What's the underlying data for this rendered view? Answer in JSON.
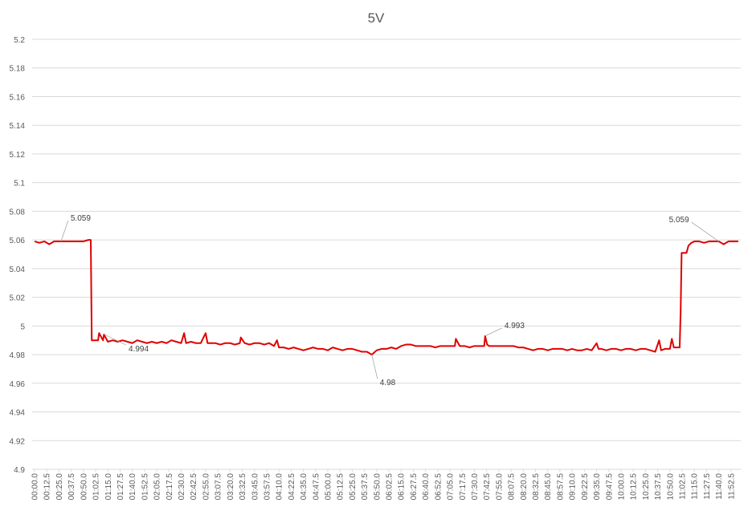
{
  "chart_data": {
    "type": "line",
    "title": "5V",
    "ylim": [
      4.9,
      5.2
    ],
    "yticks": [
      4.9,
      4.92,
      4.94,
      4.96,
      4.98,
      5,
      5.02,
      5.04,
      5.06,
      5.08,
      5.1,
      5.12,
      5.14,
      5.16,
      5.18,
      5.2
    ],
    "grid": true,
    "xlim": [
      -2.5,
      722.5
    ],
    "xticks": [
      {
        "value": 0,
        "label": "00:00.0"
      },
      {
        "value": 12.5,
        "label": "00:12.5"
      },
      {
        "value": 25,
        "label": "00:25.0"
      },
      {
        "value": 37.5,
        "label": "00:37.5"
      },
      {
        "value": 50,
        "label": "00:50.0"
      },
      {
        "value": 62.5,
        "label": "01:02.5"
      },
      {
        "value": 75,
        "label": "01:15.0"
      },
      {
        "value": 87.5,
        "label": "01:27.5"
      },
      {
        "value": 100,
        "label": "01:40.0"
      },
      {
        "value": 112.5,
        "label": "01:52.5"
      },
      {
        "value": 125,
        "label": "02:05.0"
      },
      {
        "value": 137.5,
        "label": "02:17.5"
      },
      {
        "value": 150,
        "label": "02:30.0"
      },
      {
        "value": 162.5,
        "label": "02:42.5"
      },
      {
        "value": 175,
        "label": "02:55.0"
      },
      {
        "value": 187.5,
        "label": "03:07.5"
      },
      {
        "value": 200,
        "label": "03:20.0"
      },
      {
        "value": 212.5,
        "label": "03:32.5"
      },
      {
        "value": 225,
        "label": "03:45.0"
      },
      {
        "value": 237.5,
        "label": "03:57.5"
      },
      {
        "value": 250,
        "label": "04:10.0"
      },
      {
        "value": 262.5,
        "label": "04:22.5"
      },
      {
        "value": 275,
        "label": "04:35.0"
      },
      {
        "value": 287.5,
        "label": "04:47.5"
      },
      {
        "value": 300,
        "label": "05:00.0"
      },
      {
        "value": 312.5,
        "label": "05:12.5"
      },
      {
        "value": 325,
        "label": "05:25.0"
      },
      {
        "value": 337.5,
        "label": "05:37.5"
      },
      {
        "value": 350,
        "label": "05:50.0"
      },
      {
        "value": 362.5,
        "label": "06:02.5"
      },
      {
        "value": 375,
        "label": "06:15.0"
      },
      {
        "value": 387.5,
        "label": "06:27.5"
      },
      {
        "value": 400,
        "label": "06:40.0"
      },
      {
        "value": 412.5,
        "label": "06:52.5"
      },
      {
        "value": 425,
        "label": "07:05.0"
      },
      {
        "value": 437.5,
        "label": "07:17.5"
      },
      {
        "value": 450,
        "label": "07:30.0"
      },
      {
        "value": 462.5,
        "label": "07:42.5"
      },
      {
        "value": 475,
        "label": "07:55.0"
      },
      {
        "value": 487.5,
        "label": "08:07.5"
      },
      {
        "value": 500,
        "label": "08:20.0"
      },
      {
        "value": 512.5,
        "label": "08:32.5"
      },
      {
        "value": 525,
        "label": "08:45.0"
      },
      {
        "value": 537.5,
        "label": "08:57.5"
      },
      {
        "value": 550,
        "label": "09:10.0"
      },
      {
        "value": 562.5,
        "label": "09:22.5"
      },
      {
        "value": 575,
        "label": "09:35.0"
      },
      {
        "value": 587.5,
        "label": "09:47.5"
      },
      {
        "value": 600,
        "label": "10:00.0"
      },
      {
        "value": 612.5,
        "label": "10:12.5"
      },
      {
        "value": 625,
        "label": "10:25.0"
      },
      {
        "value": 637.5,
        "label": "10:37.5"
      },
      {
        "value": 650,
        "label": "10:50.0"
      },
      {
        "value": 662.5,
        "label": "11:02.5"
      },
      {
        "value": 675,
        "label": "11:15.0"
      },
      {
        "value": 687.5,
        "label": "11:27.5"
      },
      {
        "value": 700,
        "label": "11:40.0"
      },
      {
        "value": 712.5,
        "label": "11:52.5"
      }
    ],
    "x": [
      0,
      5,
      10,
      15,
      20,
      25,
      30,
      35,
      40,
      45,
      50,
      55,
      57.5,
      58.5,
      60,
      65,
      66,
      70,
      71,
      75,
      80,
      85,
      90,
      95,
      100,
      105,
      110,
      115,
      120,
      125,
      130,
      135,
      140,
      145,
      150,
      153,
      155,
      160,
      165,
      170,
      175,
      177,
      180,
      185,
      190,
      195,
      200,
      205,
      210,
      211,
      215,
      220,
      225,
      230,
      235,
      240,
      245,
      248,
      250,
      255,
      260,
      265,
      270,
      275,
      280,
      285,
      290,
      295,
      300,
      305,
      310,
      315,
      320,
      325,
      330,
      335,
      340,
      345,
      350,
      355,
      360,
      365,
      370,
      375,
      380,
      385,
      390,
      395,
      400,
      405,
      410,
      415,
      420,
      425,
      430,
      431,
      435,
      440,
      445,
      450,
      455,
      460,
      461,
      463,
      465,
      470,
      475,
      480,
      485,
      490,
      495,
      500,
      505,
      510,
      515,
      520,
      525,
      530,
      535,
      540,
      545,
      550,
      555,
      560,
      565,
      570,
      575,
      577,
      580,
      585,
      590,
      595,
      600,
      605,
      610,
      615,
      620,
      625,
      630,
      635,
      639,
      641,
      645,
      650,
      652,
      654,
      660,
      661,
      662,
      667,
      669,
      672,
      675,
      680,
      685,
      690,
      695,
      700,
      705,
      710,
      715,
      720
    ],
    "series": [
      {
        "color": "#e00000",
        "values": [
          5.059,
          5.058,
          5.059,
          5.057,
          5.059,
          5.059,
          5.059,
          5.059,
          5.059,
          5.059,
          5.059,
          5.06,
          5.06,
          4.99,
          4.99,
          4.99,
          4.995,
          4.99,
          4.994,
          4.989,
          4.99,
          4.989,
          4.99,
          4.989,
          4.988,
          4.99,
          4.989,
          4.988,
          4.989,
          4.988,
          4.989,
          4.988,
          4.99,
          4.989,
          4.988,
          4.995,
          4.988,
          4.989,
          4.988,
          4.988,
          4.995,
          4.988,
          4.988,
          4.988,
          4.987,
          4.988,
          4.988,
          4.987,
          4.988,
          4.992,
          4.988,
          4.987,
          4.988,
          4.988,
          4.987,
          4.988,
          4.986,
          4.99,
          4.985,
          4.985,
          4.984,
          4.985,
          4.984,
          4.983,
          4.984,
          4.985,
          4.984,
          4.984,
          4.983,
          4.985,
          4.984,
          4.983,
          4.984,
          4.984,
          4.983,
          4.982,
          4.982,
          4.98,
          4.983,
          4.984,
          4.984,
          4.985,
          4.984,
          4.986,
          4.987,
          4.987,
          4.986,
          4.986,
          4.986,
          4.986,
          4.985,
          4.986,
          4.986,
          4.986,
          4.986,
          4.991,
          4.986,
          4.986,
          4.985,
          4.986,
          4.986,
          4.986,
          4.993,
          4.987,
          4.986,
          4.986,
          4.986,
          4.986,
          4.986,
          4.986,
          4.985,
          4.985,
          4.984,
          4.983,
          4.984,
          4.984,
          4.983,
          4.984,
          4.984,
          4.984,
          4.983,
          4.984,
          4.983,
          4.983,
          4.984,
          4.983,
          4.988,
          4.984,
          4.984,
          4.983,
          4.984,
          4.984,
          4.983,
          4.984,
          4.984,
          4.983,
          4.984,
          4.984,
          4.983,
          4.982,
          4.99,
          4.983,
          4.984,
          4.984,
          4.991,
          4.985,
          4.985,
          5.01,
          5.051,
          5.051,
          5.056,
          5.058,
          5.059,
          5.059,
          5.058,
          5.059,
          5.059,
          5.059,
          5.057,
          5.059,
          5.059,
          5.059
        ]
      }
    ],
    "annotations": [
      {
        "text": "5.059",
        "x": 27,
        "value": 5.059
      },
      {
        "text": "4.994",
        "x": 71.5,
        "value": 4.994
      },
      {
        "text": "4.98",
        "x": 345,
        "value": 4.98
      },
      {
        "text": "4.993",
        "x": 461,
        "value": 4.993
      },
      {
        "text": "5.059",
        "x": 700,
        "value": 5.059
      }
    ]
  }
}
